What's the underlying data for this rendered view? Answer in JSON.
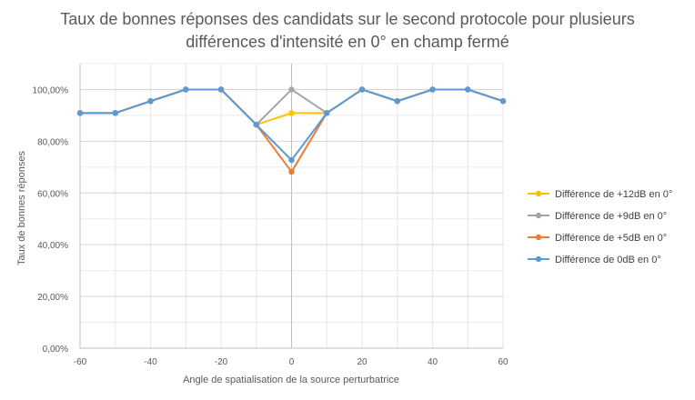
{
  "chart_data": {
    "type": "line",
    "title_lines": [
      "Taux de bonnes réponses des candidats sur le second protocole pour plusieurs",
      "différences d'intensité en 0° en champ fermé"
    ],
    "xlabel": "Angle de spatialisation de la source perturbatrice",
    "ylabel": "Taux de bonnes réponses",
    "xlim": [
      -60,
      60
    ],
    "ylim": [
      0,
      1.1
    ],
    "x_ticks": [
      -60,
      -40,
      -20,
      0,
      20,
      40,
      60
    ],
    "x_tick_labels": [
      "-60",
      "-40",
      "-20",
      "0",
      "20",
      "40",
      "60"
    ],
    "y_ticks": [
      0,
      0.2,
      0.4,
      0.6,
      0.8,
      1.0
    ],
    "y_tick_labels": [
      "0,00%",
      "20,00%",
      "40,00%",
      "60,00%",
      "80,00%",
      "100,00%"
    ],
    "grid": true,
    "legend_position": "right",
    "x": [
      -60,
      -50,
      -40,
      -30,
      -20,
      -10,
      0,
      10,
      20,
      30,
      40,
      50,
      60
    ],
    "series": [
      {
        "name": "Différence de +12dB en 0°",
        "color": "#FFC000",
        "values": [
          0.909,
          0.909,
          0.955,
          1.0,
          1.0,
          0.864,
          0.909,
          0.909,
          1.0,
          0.955,
          1.0,
          1.0,
          0.955
        ]
      },
      {
        "name": "Différence de +9dB en 0°",
        "color": "#A5A5A5",
        "values": [
          0.909,
          0.909,
          0.955,
          1.0,
          1.0,
          0.864,
          1.0,
          0.909,
          1.0,
          0.955,
          1.0,
          1.0,
          0.955
        ]
      },
      {
        "name": "Différence de +5dB en 0°",
        "color": "#ED7D31",
        "values": [
          0.909,
          0.909,
          0.955,
          1.0,
          1.0,
          0.864,
          0.682,
          0.909,
          1.0,
          0.955,
          1.0,
          1.0,
          0.955
        ]
      },
      {
        "name": "Différence de 0dB en 0°",
        "color": "#5B9BD5",
        "values": [
          0.909,
          0.909,
          0.955,
          1.0,
          1.0,
          0.864,
          0.727,
          0.909,
          1.0,
          0.955,
          1.0,
          1.0,
          0.955
        ]
      }
    ]
  }
}
